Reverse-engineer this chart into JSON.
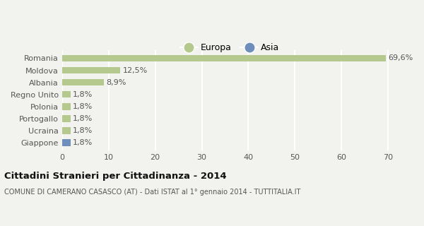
{
  "categories": [
    "Giappone",
    "Ucraina",
    "Portogallo",
    "Polonia",
    "Regno Unito",
    "Albania",
    "Moldova",
    "Romania"
  ],
  "values": [
    1.8,
    1.8,
    1.8,
    1.8,
    1.8,
    8.9,
    12.5,
    69.6
  ],
  "labels": [
    "1,8%",
    "1,8%",
    "1,8%",
    "1,8%",
    "1,8%",
    "8,9%",
    "12,5%",
    "69,6%"
  ],
  "colors": [
    "#6e8fbc",
    "#b5c98e",
    "#b5c98e",
    "#b5c98e",
    "#b5c98e",
    "#b5c98e",
    "#b5c98e",
    "#b5c98e"
  ],
  "europa_color": "#b5c98e",
  "asia_color": "#6e8fbc",
  "xlim": [
    0,
    72
  ],
  "xticks": [
    0,
    10,
    20,
    30,
    40,
    50,
    60,
    70
  ],
  "title": "Cittadini Stranieri per Cittadinanza - 2014",
  "subtitle": "COMUNE DI CAMERANO CASASCO (AT) - Dati ISTAT al 1° gennaio 2014 - TUTTITALIA.IT",
  "legend_europa": "Europa",
  "legend_asia": "Asia",
  "background_color": "#f2f2ee",
  "grid_color": "#ffffff"
}
